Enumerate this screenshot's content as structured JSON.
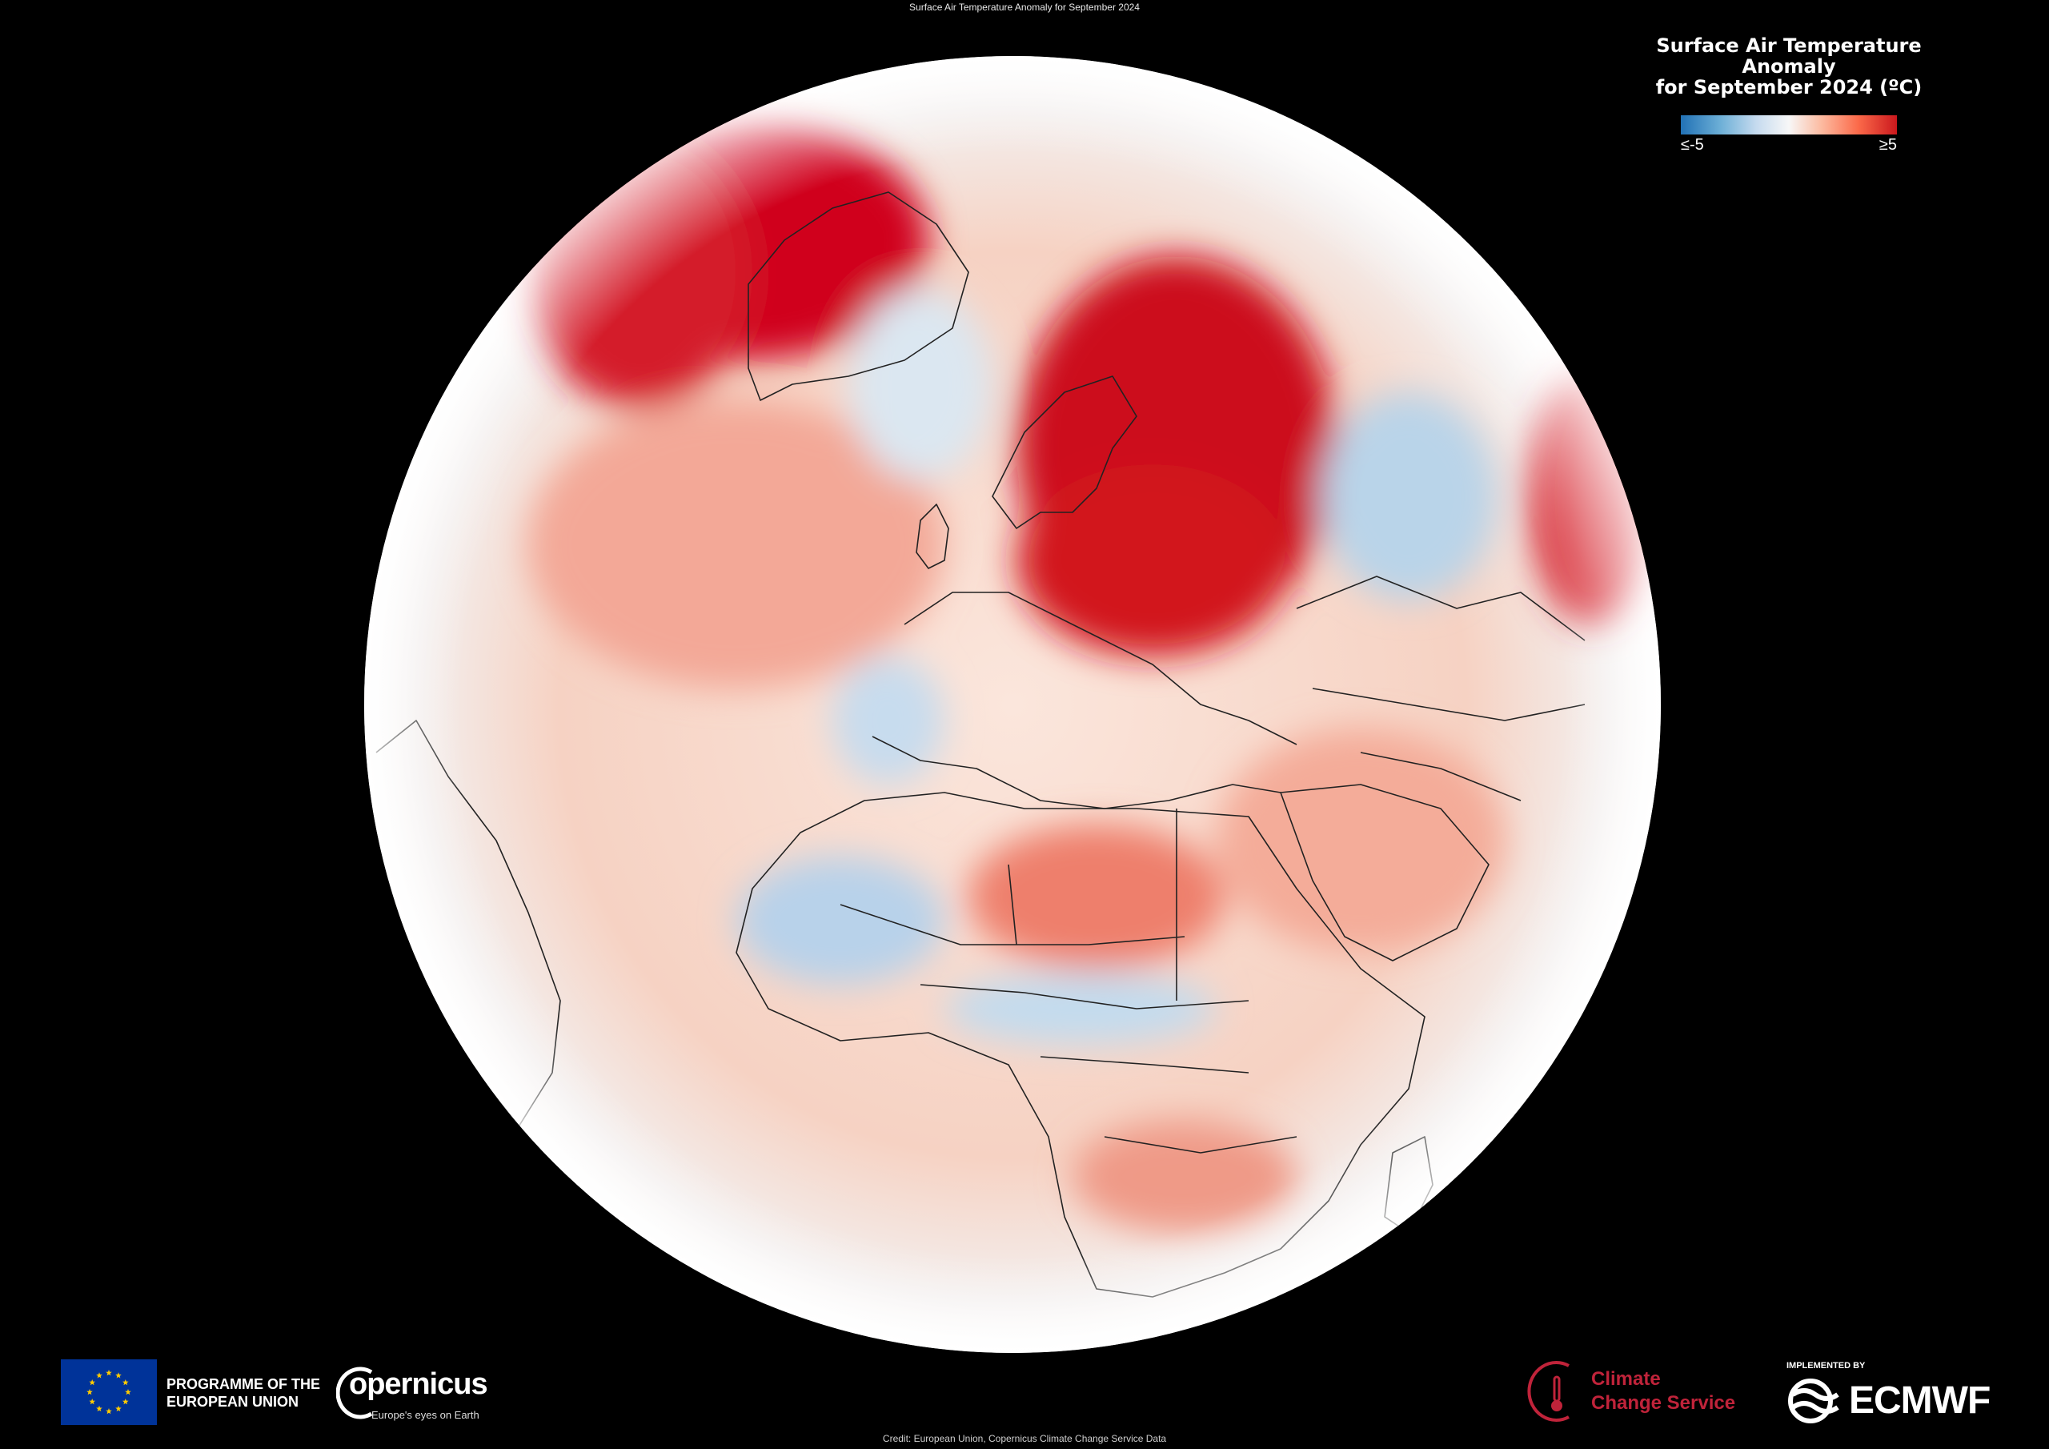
{
  "header": {
    "title": "Surface Air Temperature Anomaly for September 2024"
  },
  "legend": {
    "title_line1": "Surface Air Temperature Anomaly",
    "title_line2": "for September 2024 (ºC)",
    "min_label": "≤-5",
    "max_label": "≥5",
    "colors": {
      "cold": "#2171b5",
      "neutral": "#f7f7f7",
      "warm": "#cb181d"
    }
  },
  "footer": {
    "eu_line1": "PROGRAMME OF THE",
    "eu_line2": "EUROPEAN UNION",
    "copernicus_word": "opernicus",
    "copernicus_tagline": "Europe's eyes on Earth",
    "c3s_line1": "Climate",
    "c3s_line2": "Change Service",
    "ecmwf_implemented": "IMPLEMENTED BY",
    "ecmwf_word": "ECMWF",
    "credit": "Credit: European Union, Copernicus Climate Change Service Data"
  }
}
